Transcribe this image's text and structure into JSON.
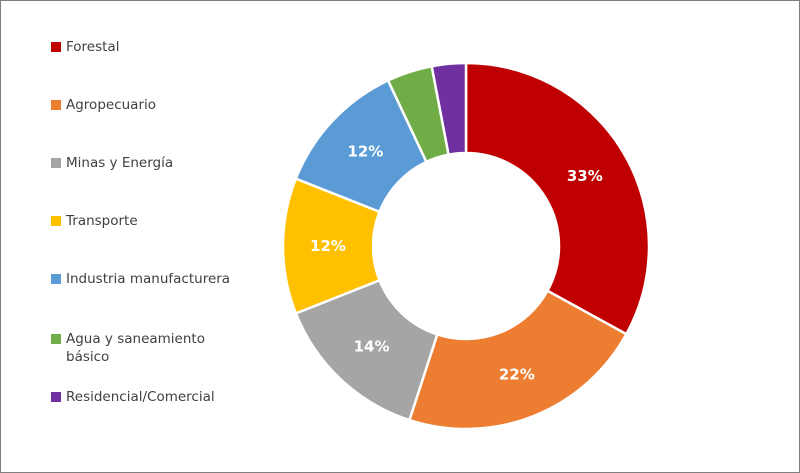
{
  "chart_data": {
    "type": "pie",
    "title": "",
    "legend_position": "left",
    "categories": [
      "Forestal",
      "Agropecuario",
      "Minas y Energía",
      "Transporte",
      "Industria manufacturera",
      "Agua y saneamiento básico",
      "Residencial/Comercial"
    ],
    "legend_lines": [
      [
        "Forestal"
      ],
      [
        "Agropecuario"
      ],
      [
        "Minas y Energía"
      ],
      [
        "Transporte"
      ],
      [
        "Industria manufacturera"
      ],
      [
        "Agua y saneamiento",
        "básico"
      ],
      [
        "Residencial/Comercial"
      ]
    ],
    "values": [
      33,
      22,
      14,
      12,
      12,
      4,
      3
    ],
    "data_labels": [
      "33%",
      "22%",
      "14%",
      "12%",
      "12%",
      "",
      ""
    ],
    "colors": [
      "#c00000",
      "#ed7d31",
      "#a5a5a5",
      "#ffc000",
      "#5b9bd5",
      "#70ad47",
      "#7030a0"
    ]
  }
}
